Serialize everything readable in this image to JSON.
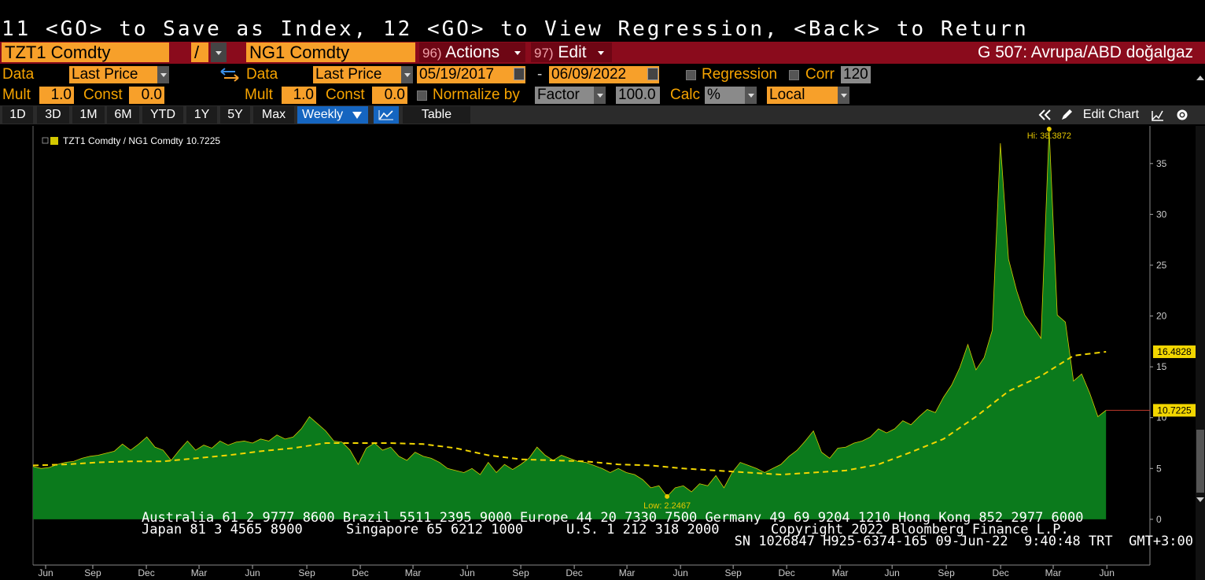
{
  "command_line": "11 <GO> to Save as Index, 12 <GO> to View Regression, <Back> to Return",
  "security_bar": {
    "security1": "TZT1 Comdty",
    "operator": "/",
    "security2": "NG1 Comdty",
    "actions_number": "96)",
    "actions": "Actions",
    "edit_number": "97)",
    "edit": "Edit",
    "title": "G 507: Avrupa/ABD doğalgaz"
  },
  "settings": {
    "data_label_1": "Data",
    "field_1": "Last Price",
    "data_label_2": "Data",
    "field_2": "Last Price",
    "start_date": "05/19/2017",
    "date_separator": "-",
    "end_date": "06/09/2022",
    "regression": "Regression",
    "corr": "Corr",
    "corr_window": "120",
    "mult_label_1": "Mult",
    "mult_1": "1.0",
    "const_label_1": "Const",
    "const_1": "0.0",
    "mult_label_2": "Mult",
    "mult_2": "1.0",
    "const_label_2": "Const",
    "const_2": "0.0",
    "normalize": "Normalize by",
    "normalize_method": "Factor",
    "normalize_value": "100.0",
    "calc_label": "Calc",
    "calc": "%",
    "currency": "Local"
  },
  "toolbar": {
    "ranges": [
      "1D",
      "3D",
      "1M",
      "6M",
      "YTD",
      "1Y",
      "5Y",
      "Max"
    ],
    "frequency": "Weekly",
    "table": "Table",
    "edit_chart": "Edit Chart"
  },
  "chart_data": {
    "type": "area",
    "series": [
      {
        "name": "TZT1 Comdty / NG1 Comdty",
        "color": "#0b7a1c",
        "line_color": "#d4c800",
        "values": [
          5.2,
          5.0,
          5.1,
          5.4,
          5.6,
          5.7,
          6.0,
          6.2,
          6.3,
          6.5,
          6.7,
          7.4,
          6.8,
          7.4,
          8.1,
          7.1,
          6.8,
          5.8,
          6.8,
          7.7,
          6.8,
          7.3,
          7.0,
          7.7,
          7.3,
          7.6,
          7.7,
          7.5,
          7.9,
          7.7,
          8.3,
          7.9,
          8.1,
          8.9,
          10.1,
          9.4,
          8.7,
          7.7,
          7.6,
          6.8,
          5.4,
          7.0,
          7.5,
          6.8,
          7.1,
          6.2,
          5.8,
          6.6,
          6.2,
          6.0,
          5.6,
          5.0,
          4.8,
          4.6,
          5.0,
          4.4,
          5.6,
          4.6,
          5.4,
          4.9,
          5.4,
          6.0,
          7.1,
          6.3,
          5.8,
          6.3,
          6.0,
          5.7,
          5.6,
          5.3,
          5.0,
          4.6,
          5.0,
          4.6,
          4.4,
          3.9,
          3.1,
          3.3,
          2.2467,
          3.1,
          3.3,
          2.7,
          3.5,
          3.3,
          4.3,
          3.1,
          4.6,
          5.6,
          5.3,
          5.0,
          4.6,
          5.0,
          5.4,
          6.2,
          6.8,
          7.7,
          8.7,
          6.6,
          6.0,
          7.0,
          7.1,
          7.5,
          7.7,
          8.1,
          8.9,
          8.5,
          8.9,
          9.7,
          9.3,
          10.1,
          10.8,
          10.5,
          12.0,
          13.2,
          14.9,
          17.2,
          14.7,
          15.9,
          18.6,
          37.0,
          25.6,
          22.5,
          20.1,
          19.0,
          17.8,
          38.3872,
          20.1,
          19.4,
          13.6,
          14.3,
          12.4,
          10.1,
          10.7225
        ]
      },
      {
        "color": "#f2d600",
        "style": "dashed",
        "x": [
          0,
          4,
          8,
          12,
          16,
          20,
          24,
          28,
          32,
          36,
          40,
          44,
          48,
          52,
          56,
          60,
          64,
          68,
          72,
          76,
          80,
          84,
          88,
          92,
          96,
          100,
          104,
          108,
          112,
          116,
          120,
          124,
          128,
          132
        ],
        "values": [
          5.3,
          5.4,
          5.6,
          5.7,
          5.7,
          6.0,
          6.3,
          6.7,
          7.0,
          7.5,
          7.5,
          7.5,
          7.4,
          7.0,
          6.3,
          5.9,
          5.8,
          5.7,
          5.4,
          5.3,
          5.0,
          4.8,
          4.6,
          4.4,
          4.6,
          4.8,
          5.4,
          6.6,
          7.9,
          10.1,
          12.6,
          14.1,
          16.1,
          16.4828
        ]
      }
    ],
    "xlim": [
      0,
      137.4
    ],
    "xticks": [
      {
        "value": 1.55,
        "label": "Jun"
      },
      {
        "value": 7.35,
        "label": "Sep"
      },
      {
        "value": 13.94,
        "label": "Dec"
      },
      {
        "value": 20.42,
        "label": "Mar"
      },
      {
        "value": 27.0,
        "label": "Jun"
      },
      {
        "value": 33.68,
        "label": "Sep"
      },
      {
        "value": 40.26,
        "label": "Dec"
      },
      {
        "value": 46.74,
        "label": "Mar"
      },
      {
        "value": 53.42,
        "label": "Jun"
      },
      {
        "value": 60.0,
        "label": "Sep"
      },
      {
        "value": 66.58,
        "label": "Dec"
      },
      {
        "value": 73.06,
        "label": "Mar"
      },
      {
        "value": 79.65,
        "label": "Jun"
      },
      {
        "value": 86.13,
        "label": "Sep"
      },
      {
        "value": 92.71,
        "label": "Dec"
      },
      {
        "value": 99.29,
        "label": "Mar"
      },
      {
        "value": 105.68,
        "label": "Jun"
      },
      {
        "value": 112.35,
        "label": "Sep"
      },
      {
        "value": 119.03,
        "label": "Dec"
      },
      {
        "value": 125.5,
        "label": "Mar"
      },
      {
        "value": 132.1,
        "label": "Jun"
      }
    ],
    "ylim": [
      -4.5,
      38.7
    ],
    "yticks": [
      0,
      5,
      10,
      15,
      20,
      25,
      30,
      35
    ],
    "grid": false,
    "annotations": {
      "high": "Hi: 38.3872",
      "low": "Low: 2.2467"
    }
  },
  "footer": {
    "line1": "Australia 61 2 9777 8600 Brazil 5511 2395 9000 Europe 44 20 7330 7500 Germany 49 69 9204 1210 Hong Kong 852 2977 6000",
    "japan": "Japan 81 3 4565 8900",
    "singapore": "Singapore 65 6212 1000",
    "us": "U.S. 1 212 318 2000",
    "copyright": "Copyright 2022 Bloomberg Finance L.P.",
    "serial": "SN 1026847 H925-6374-165 09-Jun-22  9:40:48 TRT  GMT+3:00"
  }
}
